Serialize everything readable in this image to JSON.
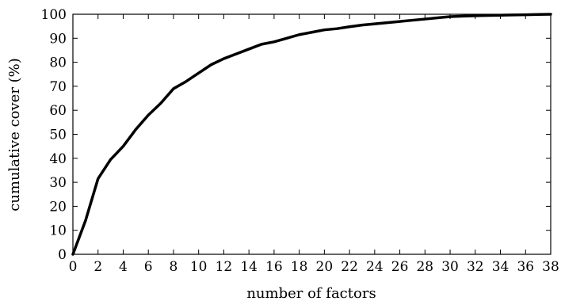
{
  "chart_data": {
    "type": "line",
    "title": "",
    "xlabel": "number of factors",
    "ylabel": "cumulative cover (%)",
    "xlim": [
      0,
      38
    ],
    "ylim": [
      0,
      100
    ],
    "xticks": [
      0,
      2,
      4,
      6,
      8,
      10,
      12,
      14,
      16,
      18,
      20,
      22,
      24,
      26,
      28,
      30,
      32,
      34,
      36,
      38
    ],
    "yticks": [
      0,
      10,
      20,
      30,
      40,
      50,
      60,
      70,
      80,
      90,
      100
    ],
    "grid": false,
    "series": [
      {
        "x": [
          0,
          1,
          2,
          3,
          4,
          5,
          6,
          7,
          8,
          9,
          10,
          11,
          12,
          13,
          14,
          15,
          16,
          17,
          18,
          19,
          20,
          21,
          22,
          23,
          24,
          25,
          26,
          27,
          28,
          29,
          30,
          31,
          32,
          33,
          34,
          35,
          36,
          37,
          38
        ],
        "y": [
          0,
          14,
          31.5,
          39.5,
          45,
          52,
          58,
          63,
          69,
          72,
          75.5,
          79,
          81.5,
          83.5,
          85.5,
          87.5,
          88.5,
          90,
          91.5,
          92.5,
          93.5,
          94,
          94.8,
          95.5,
          96,
          96.5,
          97,
          97.5,
          98,
          98.5,
          99,
          99.2,
          99.4,
          99.5,
          99.6,
          99.7,
          99.8,
          99.9,
          100
        ],
        "color": "#000000"
      }
    ]
  }
}
